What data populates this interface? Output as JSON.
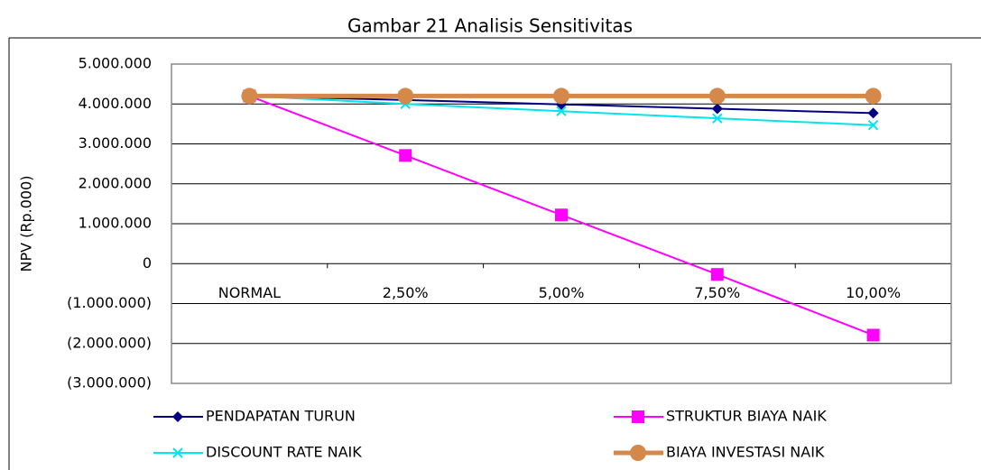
{
  "chart_data": {
    "type": "line",
    "title": "Gambar 21 Analisis Sensitivitas",
    "y_label": "NPV (Rp.000)",
    "categories": [
      "NORMAL",
      "2,50%",
      "5,00%",
      "7,50%",
      "10,00%"
    ],
    "series": [
      {
        "name": "PENDAPATAN TURUN",
        "color": "#000080",
        "marker": "diamond",
        "values": [
          4200000,
          4100000,
          3990000,
          3880000,
          3770000
        ]
      },
      {
        "name": "STRUKTUR BIAYA NAIK",
        "color": "#ff00ff",
        "marker": "square",
        "values": [
          4200000,
          2710000,
          1220000,
          -270000,
          -1790000
        ]
      },
      {
        "name": "DISCOUNT RATE NAIK",
        "color": "#00e5ee",
        "marker": "x",
        "values": [
          4200000,
          4000000,
          3820000,
          3640000,
          3470000
        ]
      },
      {
        "name": "BIAYA INVESTASI NAIK",
        "color": "#d4884a",
        "marker": "circle",
        "values": [
          4200000,
          4200000,
          4200000,
          4200000,
          4200000
        ]
      }
    ],
    "ylim": [
      -3000000,
      5000000
    ],
    "yticks": [
      {
        "value": -3000000,
        "label": "(3.000.000)"
      },
      {
        "value": -2000000,
        "label": "(2.000.000)"
      },
      {
        "value": -1000000,
        "label": "(1.000.000)"
      },
      0,
      {
        "value": 1000000,
        "label": "1.000.000"
      },
      {
        "value": 2000000,
        "label": "2.000.000"
      },
      {
        "value": 3000000,
        "label": "3.000.000"
      },
      {
        "value": 4000000,
        "label": "4.000.000"
      },
      {
        "value": 5000000,
        "label": "5.000.000"
      }
    ],
    "grid": true,
    "legend": "bottom"
  }
}
